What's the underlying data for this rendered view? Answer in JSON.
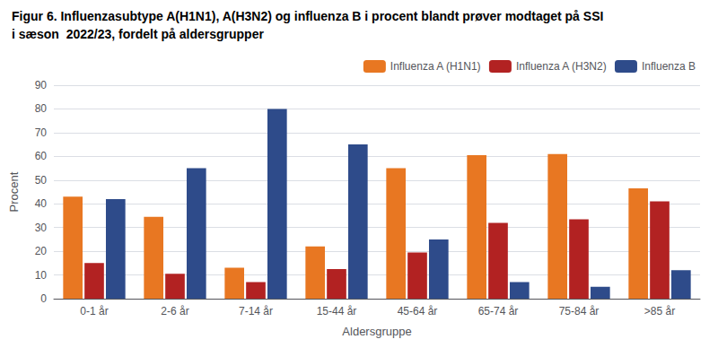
{
  "chart_data": {
    "type": "bar",
    "title": "Figur 6. Influenzasubtype A(H1N1), A(H3N2) og influenza B i procent blandt prøver modtaget på SSI",
    "subtitle": "i sæson  2022/23, fordelt på aldersgrupper",
    "x_label": "Aldersgruppe",
    "y_label": "Procent",
    "categories": [
      "0-1 år",
      "2-6 år",
      "7-14 år",
      "15-44 år",
      "45-64 år",
      "65-74 år",
      "75-84 år",
      ">85 år"
    ],
    "series": [
      {
        "name": "Influenza A (H1N1)",
        "color": "#E87722",
        "values": [
          43,
          34.5,
          13,
          22,
          55,
          60.5,
          61,
          46.5
        ]
      },
      {
        "name": "Influenza A (H3N2)",
        "color": "#B22222",
        "values": [
          15,
          10.5,
          7,
          12.5,
          19.5,
          32,
          33.5,
          41
        ]
      },
      {
        "name": "Influenza B",
        "color": "#2E4B8A",
        "values": [
          42,
          55,
          80,
          65,
          25,
          7,
          5,
          12
        ]
      }
    ],
    "ylim": [
      0,
      90
    ],
    "yticks": [
      0,
      10,
      20,
      30,
      40,
      50,
      60,
      70,
      80,
      90
    ],
    "grid": true,
    "legend": "upper right"
  }
}
